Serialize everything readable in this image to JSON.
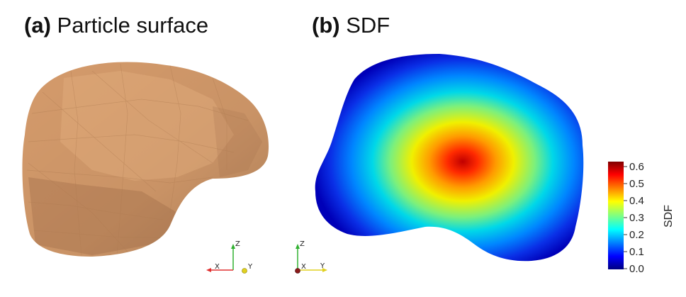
{
  "panel_a": {
    "tag": "(a)",
    "title": "Particle surface"
  },
  "panel_b": {
    "tag": "(b)",
    "title": "SDF"
  },
  "surface_color": "#d69c6c",
  "colorbar": {
    "label": "SDF",
    "colormap": "jet",
    "range": [
      0.0,
      0.6
    ],
    "ticks": [
      "0.6",
      "0.5",
      "0.4",
      "0.3",
      "0.2",
      "0.1",
      "0.0"
    ]
  },
  "axes_triad": {
    "labels": {
      "x": "X",
      "y": "Y",
      "z": "Z"
    },
    "colors": {
      "x": "#e03030",
      "y": "#e0d020",
      "z": "#30b030"
    }
  }
}
